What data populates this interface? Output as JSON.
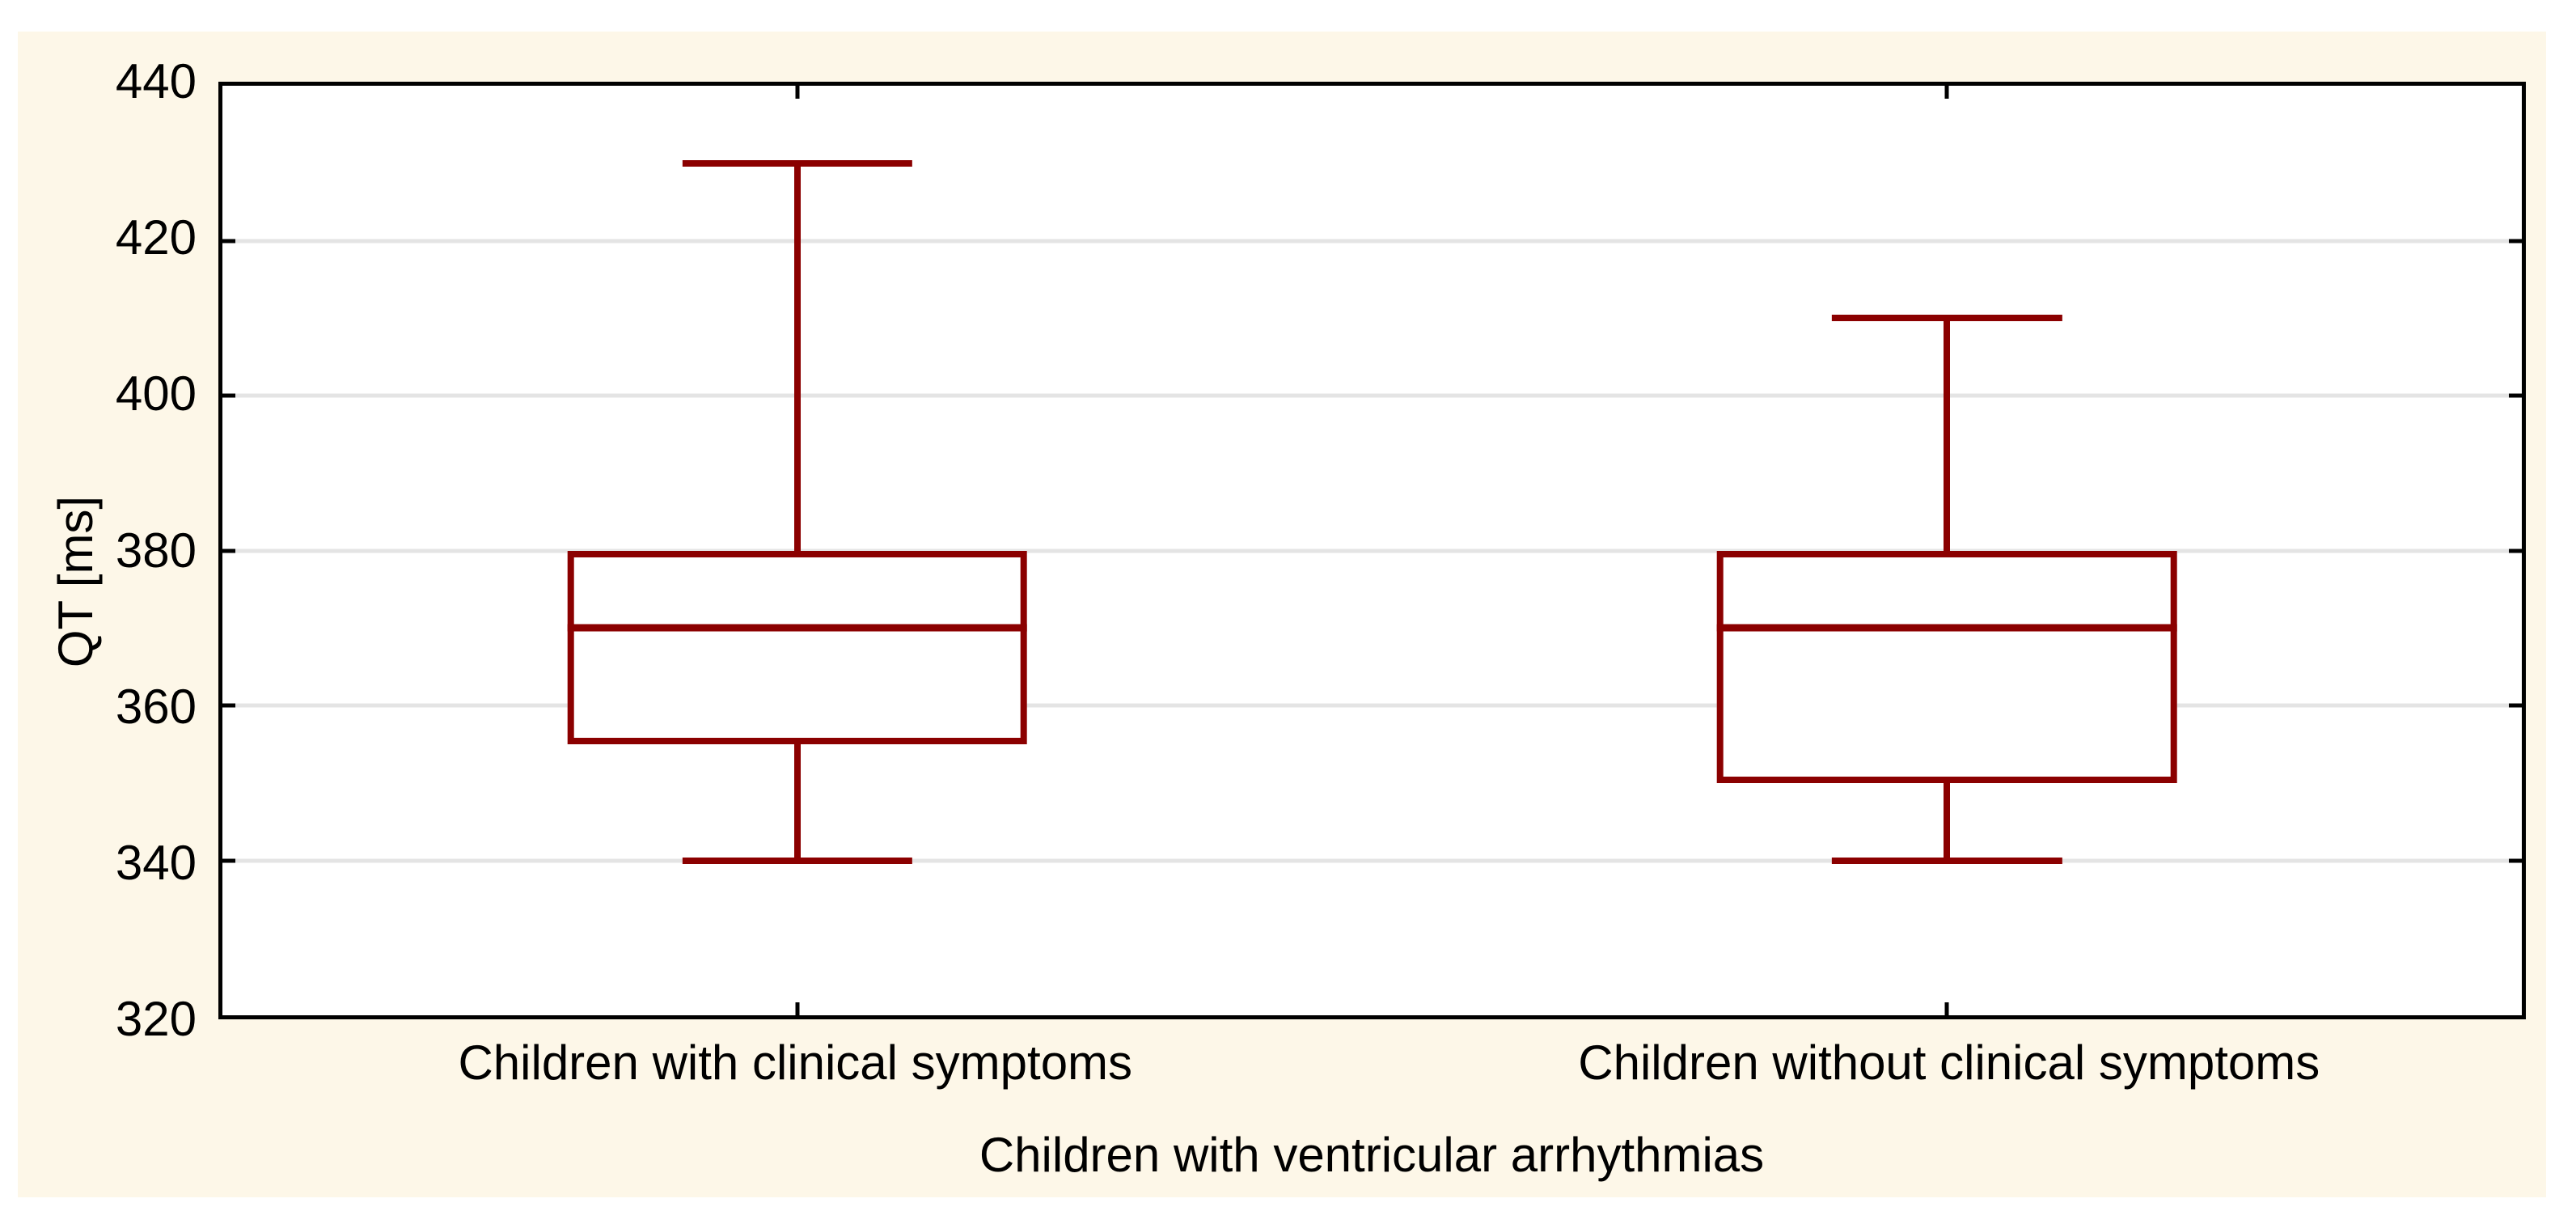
{
  "colors": {
    "page_bg": "#FFFFFF",
    "panel_bg": "#FDF7E8",
    "plot_bg": "#FFFFFF",
    "axis_line": "#000000",
    "gridline": "#E4E4E4",
    "box_line": "#8B0000",
    "text": "#000000"
  },
  "chart_data": {
    "type": "boxplot",
    "title": "",
    "xlabel": "Children with ventricular arrhythmias",
    "ylabel": "QT [ms]",
    "ylim": [
      320,
      440
    ],
    "yticks": [
      440,
      420,
      400,
      380,
      360,
      340,
      320
    ],
    "grid": "horizontal-on",
    "legend": "none",
    "categories": [
      "Children with clinical symptoms",
      "Children without clinical symptoms"
    ],
    "series": [
      {
        "name": "Children with clinical symptoms",
        "min": 340,
        "q1": 355,
        "median": 370,
        "q3": 380,
        "max": 430
      },
      {
        "name": "Children without clinical symptoms",
        "min": 340,
        "q1": 350,
        "median": 370,
        "q3": 380,
        "max": 410
      }
    ]
  }
}
